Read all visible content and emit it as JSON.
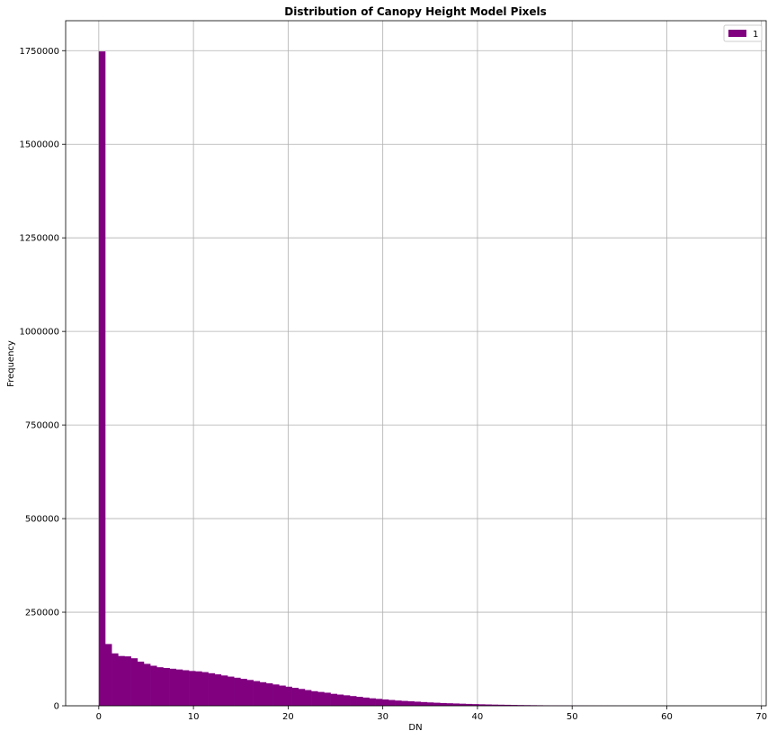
{
  "chart_data": {
    "type": "bar",
    "title": "Distribution of Canopy Height Model Pixels",
    "xlabel": "DN",
    "ylabel": "Frequency",
    "xlim": [
      -3.5,
      70.5
    ],
    "ylim": [
      0,
      1830000
    ],
    "grid": true,
    "legend": {
      "placement": "top-right",
      "entries": [
        "1"
      ]
    },
    "bar_color": "#800080",
    "x_ticks": [
      0,
      10,
      20,
      30,
      40,
      50,
      60,
      70
    ],
    "y_ticks": [
      0,
      250000,
      500000,
      750000,
      1000000,
      1250000,
      1500000,
      1750000
    ],
    "x_tick_labels": [
      "0",
      "10",
      "20",
      "30",
      "40",
      "50",
      "60",
      "70"
    ],
    "y_tick_labels": [
      "0",
      "250000",
      "500000",
      "750000",
      "1000000",
      "1250000",
      "1500000",
      "1750000"
    ],
    "series": [
      {
        "name": "1",
        "bin_start": 0,
        "bin_width": 0.68,
        "values": [
          1748000,
          165000,
          140000,
          133000,
          132000,
          127000,
          118000,
          112000,
          107000,
          103000,
          101000,
          99000,
          97000,
          95000,
          93000,
          92000,
          90000,
          87000,
          84000,
          81000,
          78000,
          75000,
          72000,
          69000,
          66000,
          63000,
          60000,
          57000,
          54000,
          51000,
          48000,
          45000,
          42000,
          39000,
          37000,
          35000,
          32000,
          30000,
          28000,
          26000,
          24000,
          22000,
          20000,
          18500,
          17000,
          15500,
          14000,
          13000,
          12000,
          11000,
          10000,
          9000,
          8200,
          7400,
          6800,
          6200,
          5600,
          5000,
          4500,
          4000,
          3600,
          3200,
          2900,
          2600,
          2300,
          2000,
          1800,
          1600,
          1400,
          1200,
          1050,
          900,
          780,
          660,
          560,
          470,
          400,
          340,
          290,
          250,
          210,
          180,
          150,
          130,
          110,
          95,
          80,
          70,
          60,
          50,
          40,
          30,
          25,
          20,
          16,
          12,
          9,
          6,
          4,
          2
        ]
      }
    ]
  }
}
